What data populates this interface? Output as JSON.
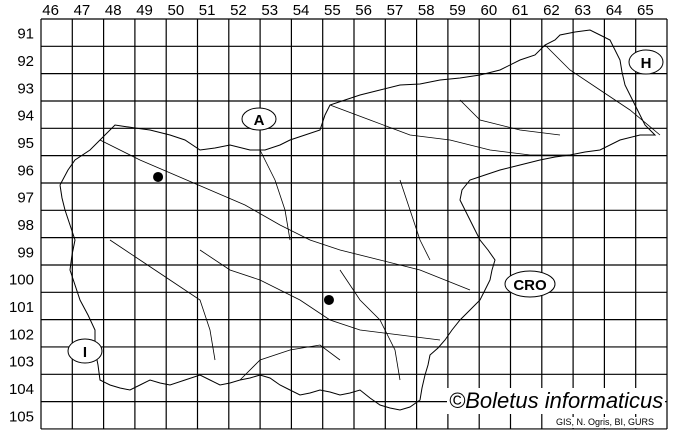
{
  "grid": {
    "columns": [
      "46",
      "47",
      "48",
      "49",
      "50",
      "51",
      "52",
      "53",
      "54",
      "55",
      "56",
      "57",
      "58",
      "59",
      "60",
      "61",
      "62",
      "63",
      "64",
      "65"
    ],
    "rows": [
      "91",
      "92",
      "93",
      "94",
      "95",
      "96",
      "97",
      "98",
      "99",
      "100",
      "101",
      "102",
      "103",
      "104",
      "105"
    ]
  },
  "country_labels": [
    {
      "id": "austria",
      "text": "A"
    },
    {
      "id": "hungary",
      "text": "H"
    },
    {
      "id": "croatia",
      "text": "CRO"
    },
    {
      "id": "italy",
      "text": "I"
    }
  ],
  "occurrences": [
    {
      "column": "49",
      "row": "96"
    },
    {
      "column": "55",
      "row": "101"
    }
  ],
  "colors": {
    "grid": "#000000",
    "border": "#000000",
    "dot": "#000000",
    "background": "#ffffff"
  },
  "copyright": "©Boletus informaticus",
  "credit": "GIS, N. Ogris, BI, GURS"
}
